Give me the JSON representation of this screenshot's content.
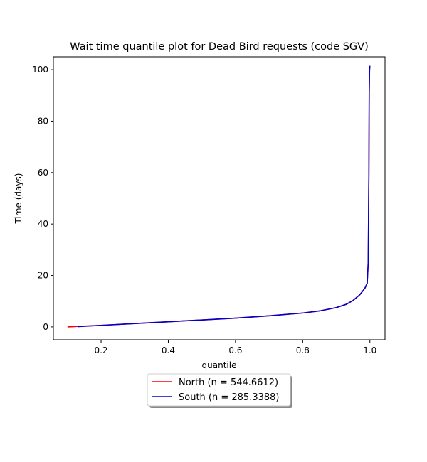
{
  "chart_data": {
    "type": "line",
    "title": "Wait time quantile plot for Dead Bird  requests (code SGV)",
    "xlabel": "quantile",
    "ylabel": "Time (days)",
    "xlim": [
      0.058,
      1.045
    ],
    "ylim": [
      -5,
      105
    ],
    "xticks": [
      0.2,
      0.4,
      0.6,
      0.8,
      1.0
    ],
    "xtick_labels": [
      "0.2",
      "0.4",
      "0.6",
      "0.8",
      "1.0"
    ],
    "yticks": [
      0,
      20,
      40,
      60,
      80,
      100
    ],
    "ytick_labels": [
      "0",
      "20",
      "40",
      "60",
      "80",
      "100"
    ],
    "grid": false,
    "legend": {
      "placement": "below-center",
      "shadow": true
    },
    "series": [
      {
        "name": "North (n = 544.6612)",
        "color": "#ff0000",
        "x": [
          0.1,
          0.13,
          0.2,
          0.3,
          0.4,
          0.5,
          0.6,
          0.7,
          0.8,
          0.85,
          0.9,
          0.93,
          0.95,
          0.97,
          0.985,
          0.992,
          0.995,
          0.997,
          0.998,
          0.999,
          1.0
        ],
        "y": [
          0.0,
          0.2,
          0.6,
          1.3,
          2.0,
          2.7,
          3.4,
          4.3,
          5.4,
          6.2,
          7.5,
          8.8,
          10.3,
          12.5,
          15.0,
          17.0,
          25.0,
          60.0,
          92.0,
          100.0,
          101.5
        ]
      },
      {
        "name": "South (n = 285.3388)",
        "color": "#0000cc",
        "x": [
          0.13,
          0.2,
          0.3,
          0.4,
          0.5,
          0.6,
          0.7,
          0.8,
          0.85,
          0.9,
          0.93,
          0.95,
          0.97,
          0.985,
          0.992,
          0.995,
          0.997,
          0.998,
          0.999,
          1.0
        ],
        "y": [
          0.1,
          0.6,
          1.3,
          2.0,
          2.7,
          3.4,
          4.3,
          5.4,
          6.2,
          7.5,
          8.8,
          10.3,
          12.5,
          15.0,
          17.0,
          25.0,
          60.0,
          92.0,
          100.0,
          101.5
        ]
      }
    ]
  }
}
